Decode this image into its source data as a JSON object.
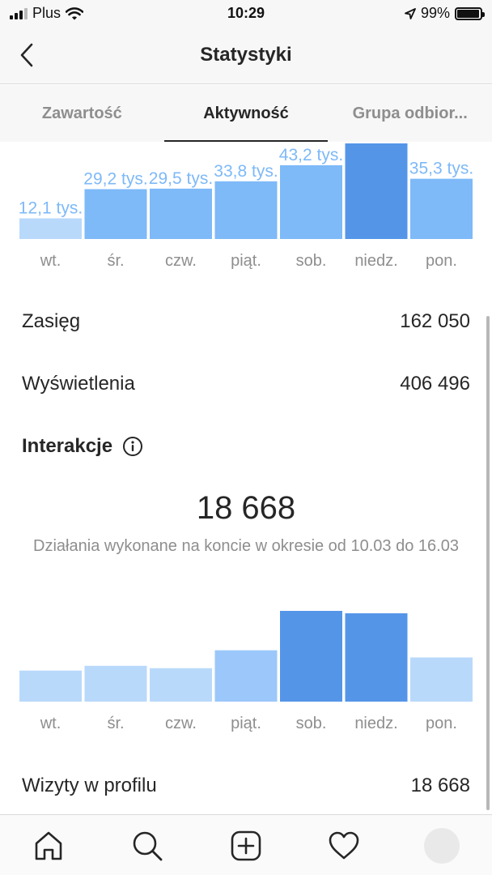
{
  "status_bar": {
    "carrier": "Plus",
    "time": "10:29",
    "battery": "99%"
  },
  "header": {
    "title": "Statystyki"
  },
  "tabs": [
    {
      "label": "Zawartość",
      "active": false
    },
    {
      "label": "Aktywność",
      "active": true
    },
    {
      "label": "Grupa odbior..."
    }
  ],
  "metrics": {
    "reach": {
      "label": "Zasięg",
      "value": "162 050"
    },
    "views": {
      "label": "Wyświetlenia",
      "value": "406 496"
    },
    "profile_visits": {
      "label": "Wizyty w profilu",
      "value": "18 668"
    }
  },
  "interactions": {
    "title": "Interakcje",
    "total": "18 668",
    "description": "Działania wykonane na koncie w okresie od 10.03 do 16.03"
  },
  "colors": {
    "bar_light": "#b9d9fb",
    "bar_mid": "#7eb9f8",
    "bar_strong": "#5495e8",
    "label": "#8e8e8e"
  },
  "chart_data": [
    {
      "type": "bar",
      "categories": [
        "wt.",
        "śr.",
        "czw.",
        "piąt.",
        "sob.",
        "niedz.",
        "pon."
      ],
      "values": [
        12.1,
        29.2,
        29.5,
        33.8,
        43.2,
        56.0,
        35.3
      ],
      "data_labels": [
        "12,1 tys.",
        "29,2 tys.",
        "29,5 tys.",
        "33,8 tys.",
        "43,2 tys.",
        "",
        "35,3 tys."
      ],
      "highlight": 5
    },
    {
      "type": "bar",
      "categories": [
        "wt.",
        "śr.",
        "czw.",
        "piąt.",
        "sob.",
        "niedz.",
        "pon."
      ],
      "values": [
        1300,
        1500,
        1400,
        2150,
        3800,
        3700,
        1850
      ],
      "highlight": [
        4,
        5
      ]
    }
  ],
  "bottom_nav": [
    "home-icon",
    "search-icon",
    "add-post-icon",
    "heart-icon",
    "profile-avatar"
  ]
}
